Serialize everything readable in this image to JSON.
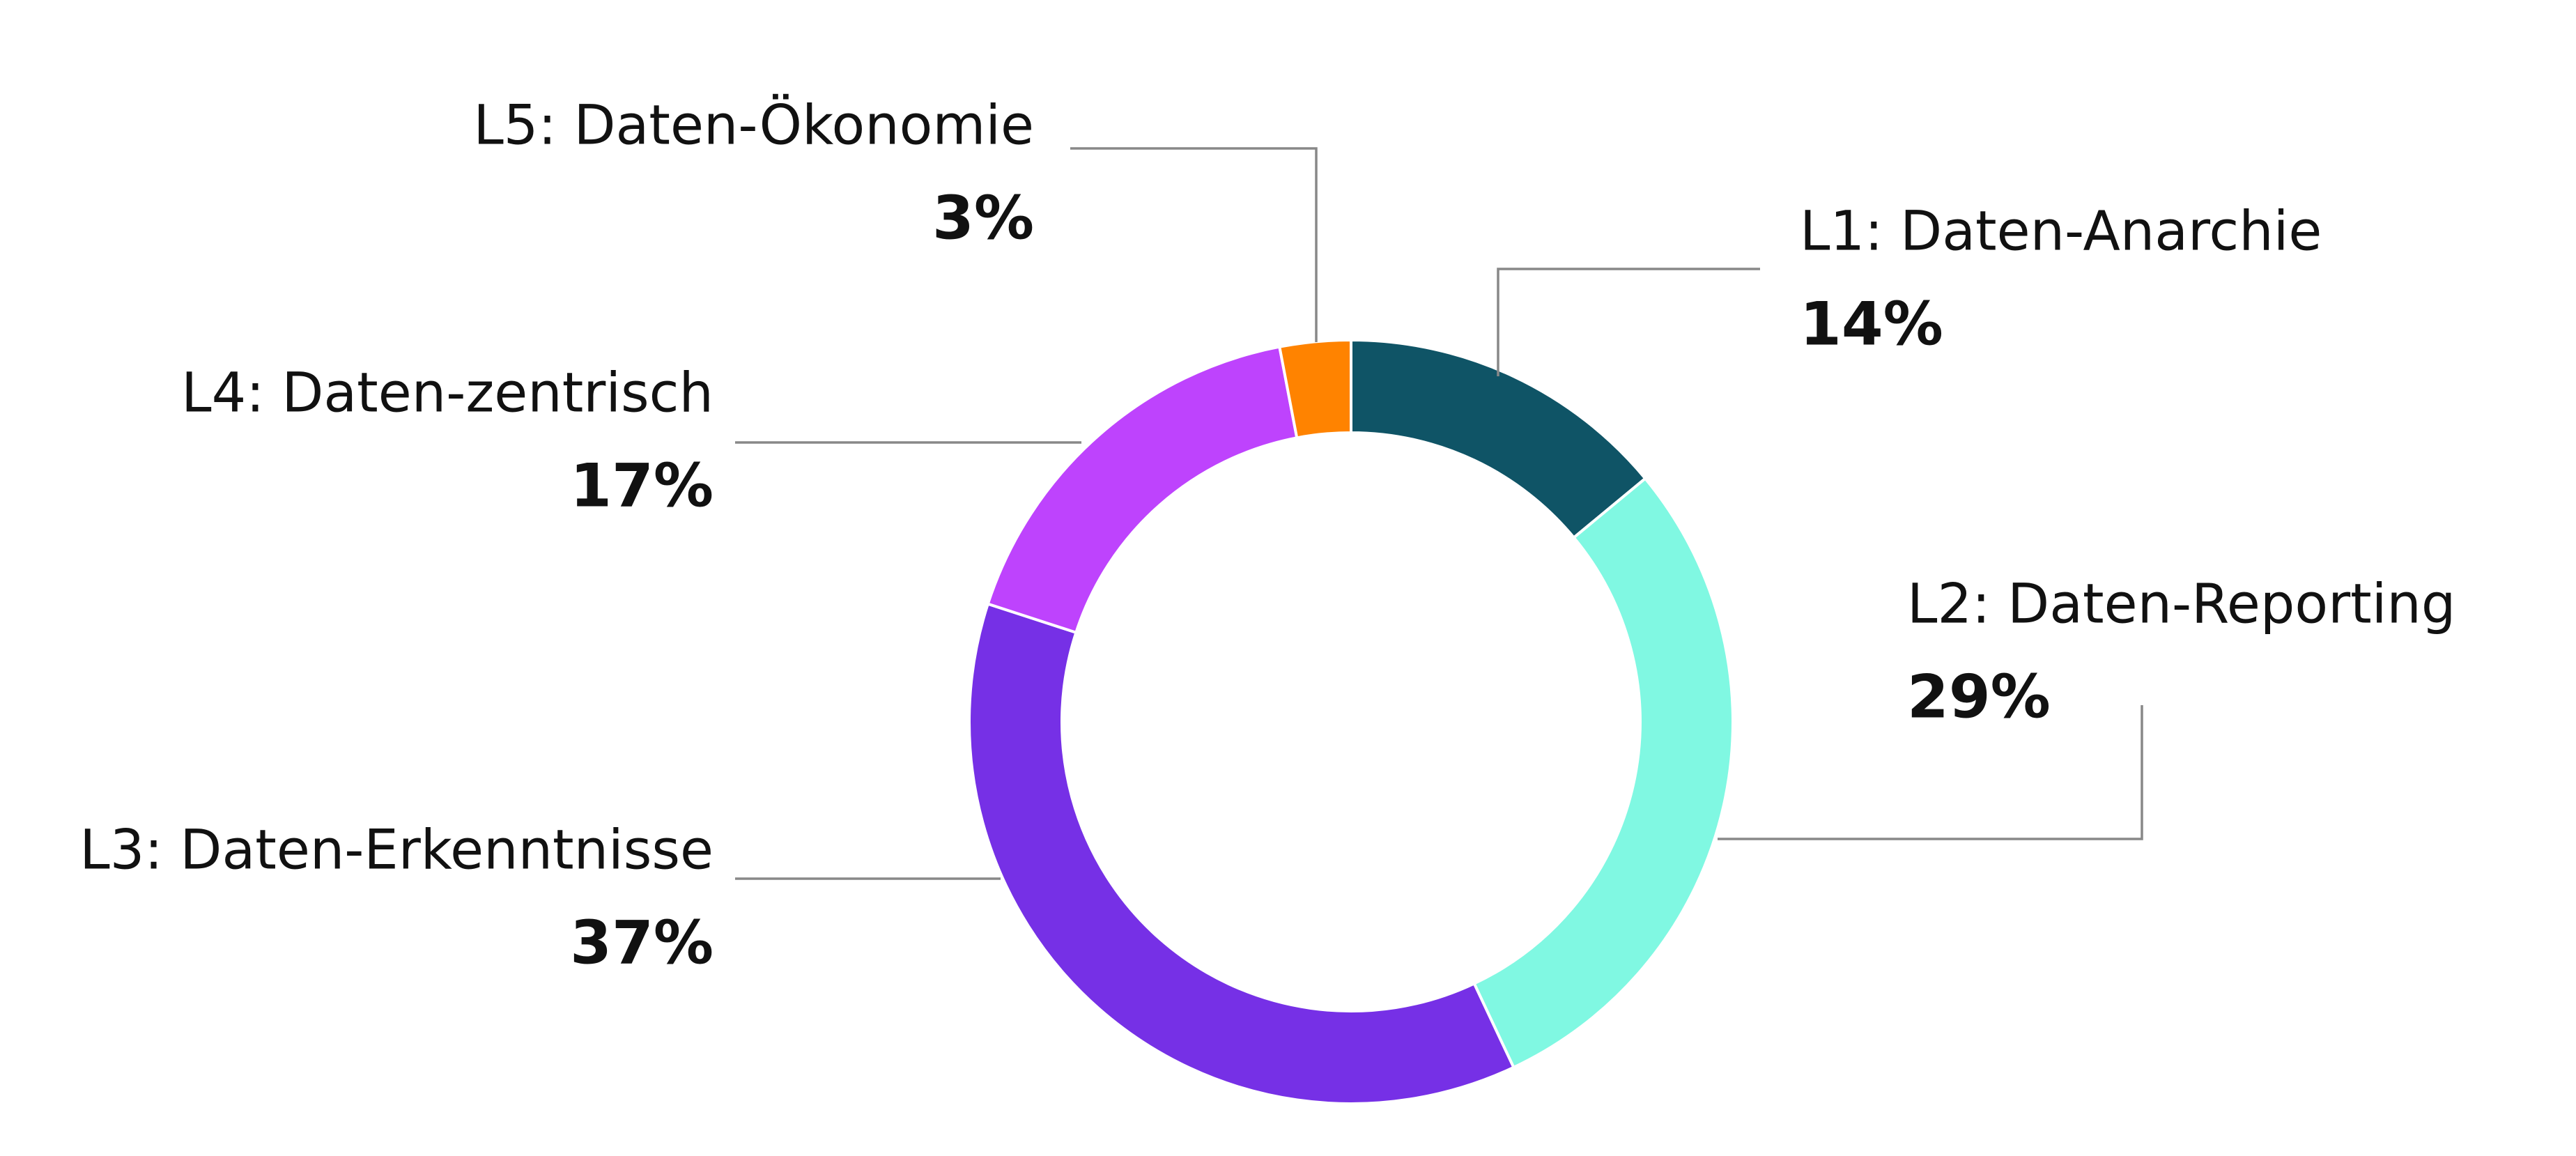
{
  "chart_data": {
    "type": "donut",
    "categories": [
      "L1: Daten-Anarchie",
      "L2: Daten-Reporting",
      "L3: Daten-Erkenntnisse",
      "L4: Daten-zentrisch",
      "L5: Daten-Ökonomie"
    ],
    "values": [
      14,
      29,
      37,
      17,
      3
    ],
    "value_labels": [
      "14%",
      "29%",
      "37%",
      "17%",
      "3%"
    ],
    "colors": [
      "#0f5466",
      "#80f8e2",
      "#7630e6",
      "#be43fd",
      "#ff8300"
    ]
  }
}
